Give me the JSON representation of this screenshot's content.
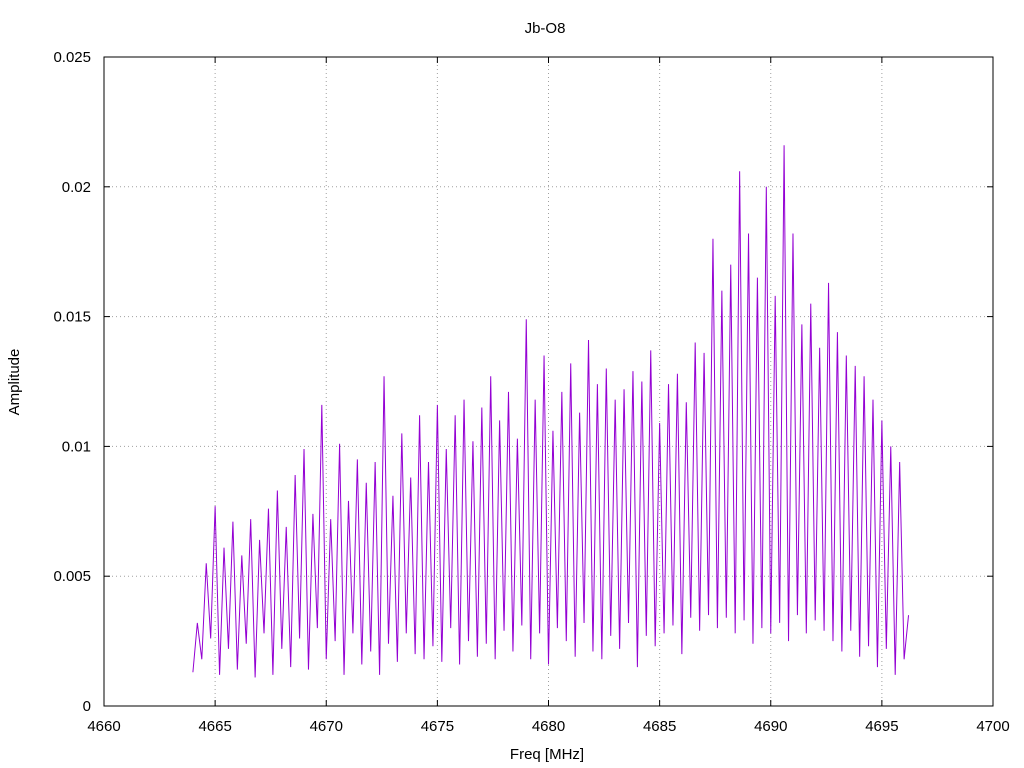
{
  "chart_data": {
    "type": "line",
    "title": "Jb-O8",
    "xlabel": "Freq [MHz]",
    "ylabel": "Amplitude",
    "xlim": [
      4660,
      4700
    ],
    "ylim": [
      0,
      0.025
    ],
    "x_ticks": [
      4660,
      4665,
      4670,
      4675,
      4680,
      4685,
      4690,
      4695,
      4700
    ],
    "x_tick_labels": [
      "4660",
      "4665",
      "4670",
      "4675",
      "4680",
      "4685",
      "4690",
      "4695",
      "4700"
    ],
    "y_ticks": [
      0,
      0.005,
      0.01,
      0.015,
      0.02,
      0.025
    ],
    "y_tick_labels": [
      "0",
      "0.005",
      "0.01",
      "0.015",
      "0.02",
      "0.025"
    ],
    "grid": true,
    "series_color": "#9400d3",
    "series": [
      {
        "x": [
          4664.0,
          4664.2,
          4664.4,
          4664.6,
          4664.8,
          4665.0,
          4665.2,
          4665.4,
          4665.6,
          4665.8,
          4666.0,
          4666.2,
          4666.4,
          4666.6,
          4666.8,
          4667.0,
          4667.2,
          4667.4,
          4667.6,
          4667.8,
          4668.0,
          4668.2,
          4668.4,
          4668.6,
          4668.8,
          4669.0,
          4669.2,
          4669.4,
          4669.6,
          4669.8,
          4670.0,
          4670.2,
          4670.4,
          4670.6,
          4670.8,
          4671.0,
          4671.2,
          4671.4,
          4671.6,
          4671.8,
          4672.0,
          4672.2,
          4672.4,
          4672.6,
          4672.8,
          4673.0,
          4673.2,
          4673.4,
          4673.6,
          4673.8,
          4674.0,
          4674.2,
          4674.4,
          4674.6,
          4674.8,
          4675.0,
          4675.2,
          4675.4,
          4675.6,
          4675.8,
          4676.0,
          4676.2,
          4676.4,
          4676.6,
          4676.8,
          4677.0,
          4677.2,
          4677.4,
          4677.6,
          4677.8,
          4678.0,
          4678.2,
          4678.4,
          4678.6,
          4678.8,
          4679.0,
          4679.2,
          4679.4,
          4679.6,
          4679.8,
          4680.0,
          4680.2,
          4680.4,
          4680.6,
          4680.8,
          4681.0,
          4681.2,
          4681.4,
          4681.6,
          4681.8,
          4682.0,
          4682.2,
          4682.4,
          4682.6,
          4682.8,
          4683.0,
          4683.2,
          4683.4,
          4683.6,
          4683.8,
          4684.0,
          4684.2,
          4684.4,
          4684.6,
          4684.8,
          4685.0,
          4685.2,
          4685.4,
          4685.6,
          4685.8,
          4686.0,
          4686.2,
          4686.4,
          4686.6,
          4686.8,
          4687.0,
          4687.2,
          4687.4,
          4687.6,
          4687.8,
          4688.0,
          4688.2,
          4688.4,
          4688.6,
          4688.8,
          4689.0,
          4689.2,
          4689.4,
          4689.6,
          4689.8,
          4690.0,
          4690.2,
          4690.4,
          4690.6,
          4690.8,
          4691.0,
          4691.2,
          4691.4,
          4691.6,
          4691.8,
          4692.0,
          4692.2,
          4692.4,
          4692.6,
          4692.8,
          4693.0,
          4693.2,
          4693.4,
          4693.6,
          4693.8,
          4694.0,
          4694.2,
          4694.4,
          4694.6,
          4694.8,
          4695.0,
          4695.2,
          4695.4,
          4695.6,
          4695.8,
          4696.0,
          4696.2
        ],
        "y": [
          0.0013,
          0.0032,
          0.0018,
          0.0055,
          0.0026,
          0.0077,
          0.0012,
          0.0061,
          0.0022,
          0.0071,
          0.0014,
          0.0058,
          0.0024,
          0.0072,
          0.0011,
          0.0064,
          0.0028,
          0.0076,
          0.0012,
          0.0083,
          0.0022,
          0.0069,
          0.0015,
          0.0089,
          0.0026,
          0.0099,
          0.0014,
          0.0074,
          0.003,
          0.0116,
          0.0018,
          0.0072,
          0.0025,
          0.0101,
          0.0012,
          0.0079,
          0.0028,
          0.0095,
          0.0016,
          0.0086,
          0.0021,
          0.0094,
          0.0012,
          0.0127,
          0.0024,
          0.0081,
          0.0017,
          0.0105,
          0.0028,
          0.0088,
          0.002,
          0.0112,
          0.0018,
          0.0094,
          0.0023,
          0.0116,
          0.0017,
          0.0099,
          0.003,
          0.0112,
          0.0016,
          0.0118,
          0.0025,
          0.0102,
          0.0019,
          0.0115,
          0.0024,
          0.0127,
          0.0018,
          0.011,
          0.0029,
          0.0121,
          0.0021,
          0.0103,
          0.0031,
          0.0149,
          0.0018,
          0.0118,
          0.0028,
          0.0135,
          0.0016,
          0.0106,
          0.003,
          0.0121,
          0.0025,
          0.0132,
          0.0019,
          0.0113,
          0.0032,
          0.0141,
          0.0021,
          0.0124,
          0.0018,
          0.013,
          0.0027,
          0.0118,
          0.0022,
          0.0122,
          0.0032,
          0.0129,
          0.0015,
          0.0125,
          0.0027,
          0.0137,
          0.0023,
          0.0109,
          0.0028,
          0.0124,
          0.0031,
          0.0128,
          0.002,
          0.0117,
          0.0034,
          0.014,
          0.0029,
          0.0136,
          0.0035,
          0.018,
          0.003,
          0.016,
          0.0034,
          0.017,
          0.0028,
          0.0206,
          0.0033,
          0.0182,
          0.0024,
          0.0165,
          0.003,
          0.02,
          0.0028,
          0.0158,
          0.0032,
          0.0216,
          0.0025,
          0.0182,
          0.0035,
          0.0147,
          0.0028,
          0.0155,
          0.0033,
          0.0138,
          0.0029,
          0.0163,
          0.0025,
          0.0144,
          0.0021,
          0.0135,
          0.0029,
          0.0131,
          0.0019,
          0.0127,
          0.0023,
          0.0118,
          0.0015,
          0.011,
          0.0022,
          0.01,
          0.0012,
          0.0094,
          0.0018,
          0.0035
        ]
      }
    ]
  }
}
